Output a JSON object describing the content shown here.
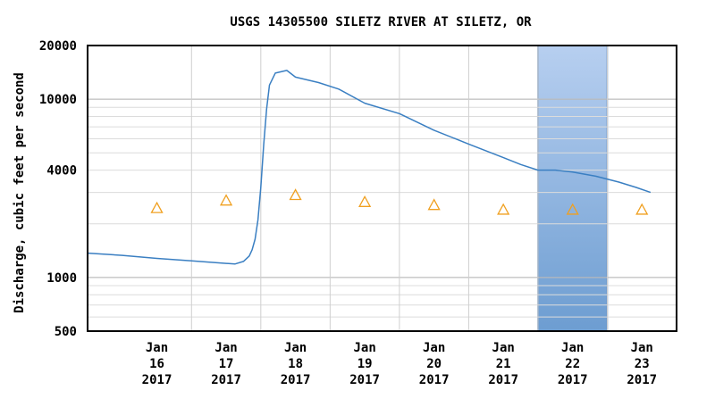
{
  "chart_data": {
    "type": "line",
    "title": "USGS 14305500 SILETZ RIVER AT SILETZ, OR",
    "xlabel": "",
    "ylabel": "Discharge, cubic feet per second",
    "y_scale": "log",
    "ylim": [
      500,
      20000
    ],
    "y_ticks": [
      {
        "value": 20000,
        "label": "20000"
      },
      {
        "value": 10000,
        "label": "10000"
      },
      {
        "value": 4000,
        "label": "4000"
      },
      {
        "value": 1000,
        "label": "1000"
      },
      {
        "value": 500,
        "label": "500"
      }
    ],
    "x_range": [
      "2017-01-15",
      "2017-01-23 12:00"
    ],
    "x_ticks": [
      {
        "date": "2017-01-16",
        "label": [
          "Jan",
          "16",
          "2017"
        ]
      },
      {
        "date": "2017-01-17",
        "label": [
          "Jan",
          "17",
          "2017"
        ]
      },
      {
        "date": "2017-01-18",
        "label": [
          "Jan",
          "18",
          "2017"
        ]
      },
      {
        "date": "2017-01-19",
        "label": [
          "Jan",
          "19",
          "2017"
        ]
      },
      {
        "date": "2017-01-20",
        "label": [
          "Jan",
          "20",
          "2017"
        ]
      },
      {
        "date": "2017-01-21",
        "label": [
          "Jan",
          "21",
          "2017"
        ]
      },
      {
        "date": "2017-01-22",
        "label": [
          "Jan",
          "22",
          "2017"
        ]
      },
      {
        "date": "2017-01-23",
        "label": [
          "Jan",
          "23",
          "2017"
        ]
      }
    ],
    "grid": true,
    "series": [
      {
        "kind": "line",
        "color": "#3a7fc2",
        "points": [
          {
            "x": "2017-01-15 00:00",
            "y": 1370
          },
          {
            "x": "2017-01-15 12:00",
            "y": 1330
          },
          {
            "x": "2017-01-16 00:00",
            "y": 1280
          },
          {
            "x": "2017-01-16 12:00",
            "y": 1240
          },
          {
            "x": "2017-01-17 00:00",
            "y": 1200
          },
          {
            "x": "2017-01-17 03:00",
            "y": 1190
          },
          {
            "x": "2017-01-17 06:00",
            "y": 1230
          },
          {
            "x": "2017-01-17 08:00",
            "y": 1320
          },
          {
            "x": "2017-01-17 09:00",
            "y": 1430
          },
          {
            "x": "2017-01-17 10:00",
            "y": 1640
          },
          {
            "x": "2017-01-17 11:00",
            "y": 2100
          },
          {
            "x": "2017-01-17 12:00",
            "y": 3200
          },
          {
            "x": "2017-01-17 13:00",
            "y": 5600
          },
          {
            "x": "2017-01-17 14:00",
            "y": 8800
          },
          {
            "x": "2017-01-17 15:00",
            "y": 12000
          },
          {
            "x": "2017-01-17 17:00",
            "y": 14000
          },
          {
            "x": "2017-01-17 21:00",
            "y": 14500
          },
          {
            "x": "2017-01-18 00:00",
            "y": 13300
          },
          {
            "x": "2017-01-18 08:00",
            "y": 12400
          },
          {
            "x": "2017-01-18 15:00",
            "y": 11400
          },
          {
            "x": "2017-01-19 00:00",
            "y": 9500
          },
          {
            "x": "2017-01-19 12:00",
            "y": 8300
          },
          {
            "x": "2017-01-20 00:00",
            "y": 6700
          },
          {
            "x": "2017-01-20 12:00",
            "y": 5600
          },
          {
            "x": "2017-01-21 00:00",
            "y": 4700
          },
          {
            "x": "2017-01-21 06:00",
            "y": 4300
          },
          {
            "x": "2017-01-21 12:00",
            "y": 4000
          },
          {
            "x": "2017-01-21 18:00",
            "y": 4000
          },
          {
            "x": "2017-01-22 00:00",
            "y": 3900
          },
          {
            "x": "2017-01-22 08:00",
            "y": 3700
          },
          {
            "x": "2017-01-22 16:00",
            "y": 3430
          },
          {
            "x": "2017-01-22 22:00",
            "y": 3200
          },
          {
            "x": "2017-01-23 03:00",
            "y": 3000
          }
        ]
      },
      {
        "kind": "markers",
        "marker": "triangle",
        "color": "#f0a020",
        "points": [
          {
            "x": "2017-01-16",
            "y": 2450
          },
          {
            "x": "2017-01-17",
            "y": 2700
          },
          {
            "x": "2017-01-18",
            "y": 2900
          },
          {
            "x": "2017-01-19",
            "y": 2650
          },
          {
            "x": "2017-01-20",
            "y": 2550
          },
          {
            "x": "2017-01-21",
            "y": 2400
          },
          {
            "x": "2017-01-22",
            "y": 2400
          },
          {
            "x": "2017-01-23",
            "y": 2400
          }
        ]
      }
    ],
    "shaded_range": {
      "from": "2017-01-21 12:00",
      "to": "2017-01-22 12:00",
      "color": "#6d9dd1"
    },
    "threshold_line": {
      "y": 20000,
      "color": "#e8a020"
    }
  }
}
